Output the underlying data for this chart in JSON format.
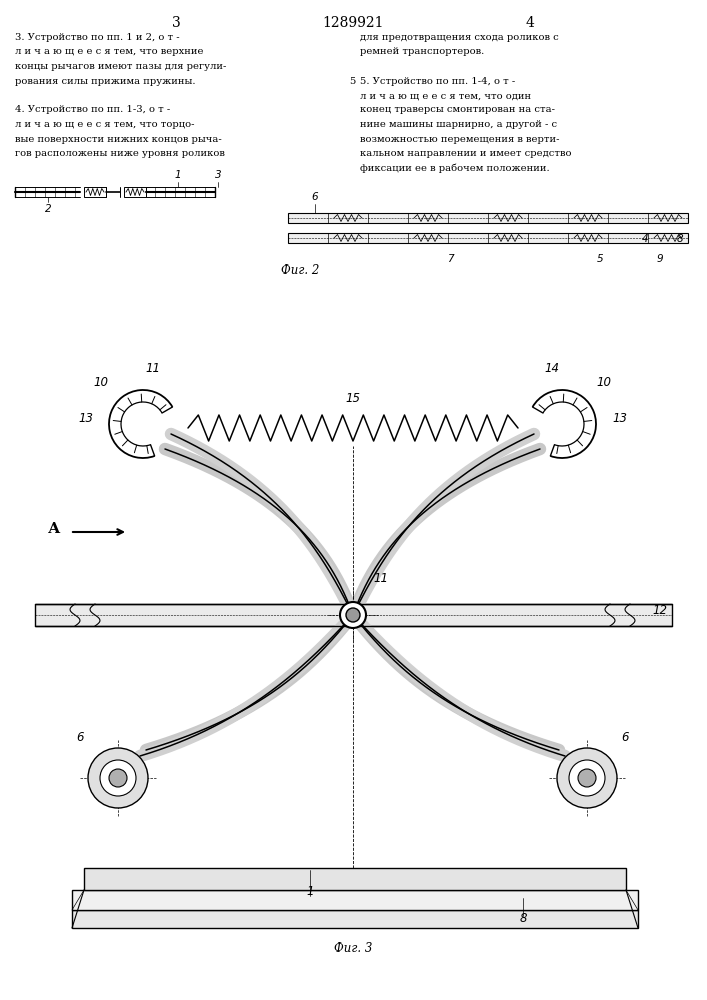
{
  "page_left_num": "3",
  "page_center_num": "1289921",
  "page_right_num": "4",
  "text_left_lines": [
    "3. Устройство по пп. 1 и 2, о т -",
    "л и ч а ю щ е е с я тем, что верхние",
    "концы рычагов имеют пазы для регули-",
    "рования силы прижима пружины.",
    "",
    "4. Устройство по пп. 1-3, о т -",
    "л и ч а ю щ е е с я тем, что торцо-",
    "вые поверхности нижних концов рыча-",
    "гов расположены ниже уровня роликов"
  ],
  "text_right_lines": [
    "для предотвращения схода роликов с",
    "ремней транспортеров.",
    "",
    "5. Устройство по пп. 1-4, о т -",
    "л и ч а ю щ е е с я тем, что один",
    "конец траверсы смонтирован на ста-",
    "нине машины шарнирно, а другой - с",
    "возможностью перемещения в верти-",
    "кальном направлении и имеет средство",
    "фиксации ее в рабочем положении."
  ],
  "fig2_caption": "Фиг. 2",
  "fig3_caption": "Фиг. 3"
}
